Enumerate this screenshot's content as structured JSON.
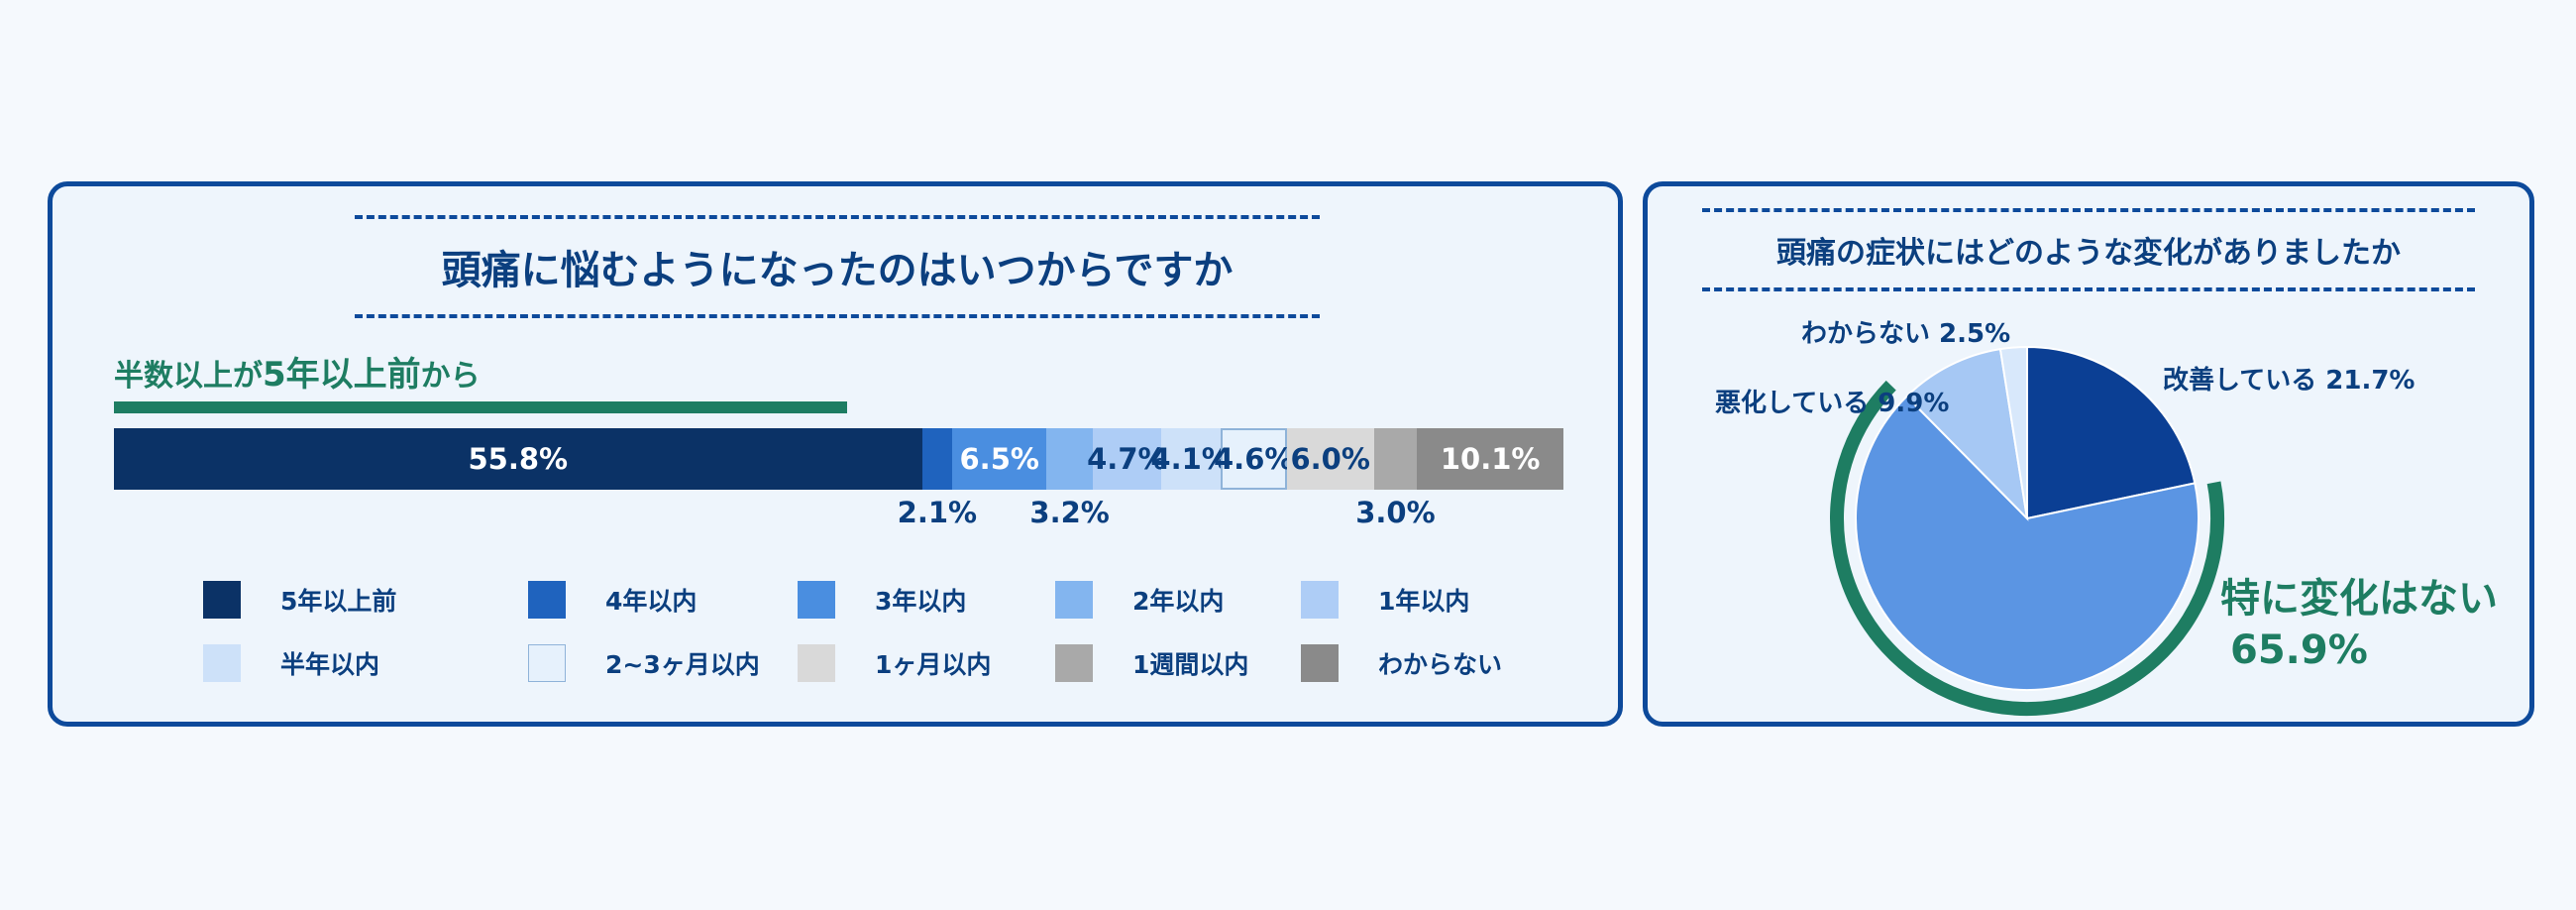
{
  "chart_data": [
    {
      "type": "bar",
      "orientation": "horizontal-stacked-100",
      "title": "頭痛に悩むようになったのはいつからですか",
      "annotation": "半数以上が5年以上前から",
      "annotation_parts": [
        "半数以上が",
        "5年以上前",
        "から"
      ],
      "series": [
        {
          "name": "5年以上前",
          "value": 55.8,
          "label": "55.8%",
          "color": "#0b3266",
          "text_color": "#ffffff",
          "label_pos": "inside"
        },
        {
          "name": "4年以内",
          "value": 2.1,
          "label": "2.1%",
          "color": "#1f63be",
          "text_color": "#0b3f7f",
          "label_pos": "below"
        },
        {
          "name": "3年以内",
          "value": 6.5,
          "label": "6.5%",
          "color": "#4a8ee0",
          "text_color": "#ffffff",
          "label_pos": "inside"
        },
        {
          "name": "2年以内",
          "value": 3.2,
          "label": "3.2%",
          "color": "#83b5ef",
          "text_color": "#0b3f7f",
          "label_pos": "below"
        },
        {
          "name": "1年以内",
          "value": 4.7,
          "label": "4.7%",
          "color": "#aecdf6",
          "text_color": "#0b3f7f",
          "label_pos": "inside"
        },
        {
          "name": "半年以内",
          "value": 4.1,
          "label": "4.1%",
          "color": "#cde1f9",
          "text_color": "#0b3f7f",
          "label_pos": "inside"
        },
        {
          "name": "2~3ヶ月以内",
          "value": 4.6,
          "label": "4.6%",
          "color": "#e6f1fc",
          "text_color": "#0b3f7f",
          "label_pos": "inside",
          "border": "#8fb3d9"
        },
        {
          "name": "1ヶ月以内",
          "value": 6.0,
          "label": "6.0%",
          "color": "#d9d9d9",
          "text_color": "#0b3f7f",
          "label_pos": "inside"
        },
        {
          "name": "1週間以内",
          "value": 3.0,
          "label": "3.0%",
          "color": "#a9a9a9",
          "text_color": "#0b3f7f",
          "label_pos": "below"
        },
        {
          "name": "わからない",
          "value": 10.1,
          "label": "10.1%",
          "color": "#8a8a8a",
          "text_color": "#ffffff",
          "label_pos": "inside"
        }
      ],
      "legend": {
        "rows": 2,
        "columns": 5,
        "placement": "bottom"
      }
    },
    {
      "type": "pie",
      "title": "頭痛の症状にはどのような変化がありましたか",
      "slices": [
        {
          "name": "改善している",
          "value": 21.7,
          "label": "改善している 21.7%",
          "color": "#0b3f94"
        },
        {
          "name": "特に変化はない",
          "value": 65.9,
          "label_name": "特に変化はない",
          "label_value": "65.9%",
          "color": "#5b95e3"
        },
        {
          "name": "悪化している",
          "value": 9.9,
          "label": "悪化している 9.9%",
          "color": "#a6c8f4"
        },
        {
          "name": "わからない",
          "value": 2.5,
          "label": "わからない 2.5%",
          "color": "#d8e8fb"
        }
      ],
      "start_angle": "12 o'clock",
      "direction": "clockwise",
      "highlight": {
        "slice": "特に変化はない",
        "color": "#1e7d62"
      }
    }
  ]
}
